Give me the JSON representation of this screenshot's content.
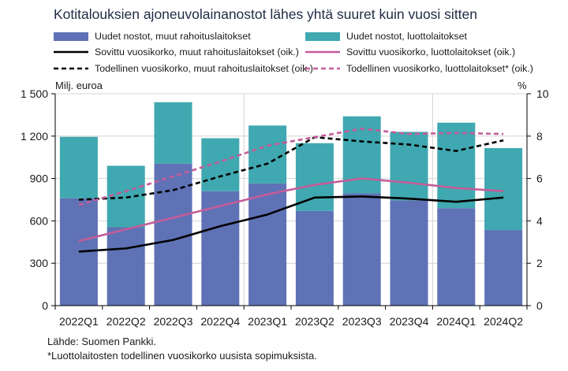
{
  "title": "Kotitalouksien ajoneuvolainanostot lähes yhtä suuret kuin vuosi sitten",
  "source": "Lähde: Suomen Pankki.",
  "footnote": "*Luottolaitosten todellinen vuosikorko uusista sopimuksista.",
  "chart_data": {
    "type": "bar",
    "stacked": true,
    "categories": [
      "2022Q1",
      "2022Q2",
      "2022Q3",
      "2022Q4",
      "2023Q1",
      "2023Q2",
      "2023Q3",
      "2023Q4",
      "2024Q1",
      "2024Q2"
    ],
    "ylabel": "Milj. euroa",
    "ylabel_right": "%",
    "ylim": [
      0,
      1500
    ],
    "yticks": [
      "0",
      "300",
      "600",
      "900",
      "1 200",
      "1 500"
    ],
    "yticks_values": [
      0,
      300,
      600,
      900,
      1200,
      1500
    ],
    "ylim_right": [
      0,
      10
    ],
    "yticks_right": [
      "0",
      "2",
      "4",
      "6",
      "8",
      "10"
    ],
    "yticks_right_values": [
      0,
      2,
      4,
      6,
      8,
      10
    ],
    "legend_position": "top",
    "series": [
      {
        "name": "Uudet nostot, muut rahoituslaitokset",
        "kind": "bar",
        "axis": "left",
        "color": "#5e72b5",
        "values": [
          760,
          555,
          1005,
          810,
          865,
          670,
          795,
          745,
          690,
          535
        ]
      },
      {
        "name": "Uudet nostot, luottolaitokset",
        "kind": "bar",
        "axis": "left",
        "color": "#40a8b0",
        "values": [
          435,
          435,
          435,
          375,
          410,
          480,
          545,
          485,
          605,
          580
        ]
      },
      {
        "name": "Sovittu vuosikorko, muut rahoituslaitokset (oik.)",
        "kind": "line",
        "axis": "right",
        "color": "#000000",
        "dash": "solid",
        "values": [
          2.55,
          2.7,
          3.1,
          3.75,
          4.3,
          5.1,
          5.15,
          5.05,
          4.9,
          5.1
        ]
      },
      {
        "name": "Sovittu vuosikorko, luottolaitokset (oik.)",
        "kind": "line",
        "axis": "right",
        "color": "#c45c9a",
        "dash": "solid",
        "values": [
          3.05,
          3.6,
          4.15,
          4.7,
          5.25,
          5.7,
          6.0,
          5.8,
          5.55,
          5.4
        ]
      },
      {
        "name": "Todellinen vuosikorko, muut rahoituslaitokset (oik.)",
        "kind": "line",
        "axis": "right",
        "color": "#000000",
        "dash": "dashed",
        "values": [
          5.0,
          5.1,
          5.45,
          6.1,
          6.7,
          7.95,
          7.75,
          7.6,
          7.3,
          7.8
        ]
      },
      {
        "name": "Todellinen vuosikorko, luottolaitokset* (oik.)",
        "kind": "line",
        "axis": "right",
        "color": "#c45c9a",
        "dash": "dashed",
        "values": [
          4.75,
          5.4,
          6.1,
          6.8,
          7.55,
          7.95,
          8.35,
          8.1,
          8.15,
          8.1
        ]
      }
    ]
  }
}
